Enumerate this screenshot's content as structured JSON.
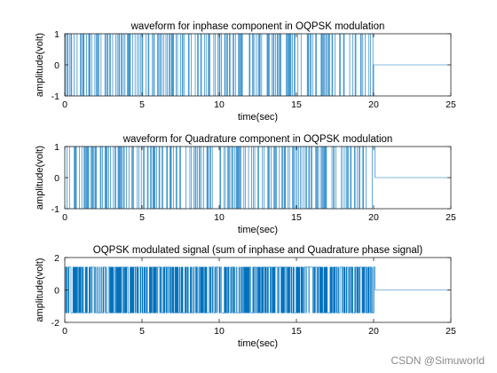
{
  "chart_data": [
    {
      "type": "line",
      "title": "waveform for inphase component in OQPSK modulation",
      "xlabel": "time(sec)",
      "ylabel": "amplitude(volt)",
      "xlim": [
        0,
        25
      ],
      "ylim": [
        -1,
        1
      ],
      "xticks": [
        0,
        5,
        10,
        15,
        20,
        25
      ],
      "yticks": [
        -1,
        0,
        1
      ],
      "signal": {
        "kind": "square",
        "amplitude": 1,
        "t_start": 0,
        "t_end": 20,
        "after_value": 0
      },
      "color": "#0072BD"
    },
    {
      "type": "line",
      "title": "waveform for Quadrature component in OQPSK modulation",
      "xlabel": "time(sec)",
      "ylabel": "amplitude(volt)",
      "xlim": [
        0,
        25
      ],
      "ylim": [
        -1,
        1
      ],
      "xticks": [
        0,
        5,
        10,
        15,
        20,
        25
      ],
      "yticks": [
        -1,
        0,
        1
      ],
      "signal": {
        "kind": "square",
        "amplitude": 1,
        "t_start": 0.1,
        "t_end": 20.1,
        "after_value": 0
      },
      "color": "#0072BD"
    },
    {
      "type": "line",
      "title": "OQPSK modulated signal (sum of inphase and Quadrature phase signal)",
      "xlabel": "time(sec)",
      "ylabel": "amplitude(volt)",
      "xlim": [
        0,
        25
      ],
      "ylim": [
        -2,
        2
      ],
      "xticks": [
        0,
        5,
        10,
        15,
        20,
        25
      ],
      "yticks": [
        -2,
        0,
        2
      ],
      "signal": {
        "kind": "sum",
        "amplitude": 1.41,
        "t_start": 0,
        "t_end": 20.1,
        "after_value": 0
      },
      "color": "#0072BD"
    }
  ],
  "watermark": "CSDN @Simuworld",
  "colors": {
    "axes": "#262626",
    "grid_zero": "#d9d9d9",
    "line": "#0072BD"
  }
}
